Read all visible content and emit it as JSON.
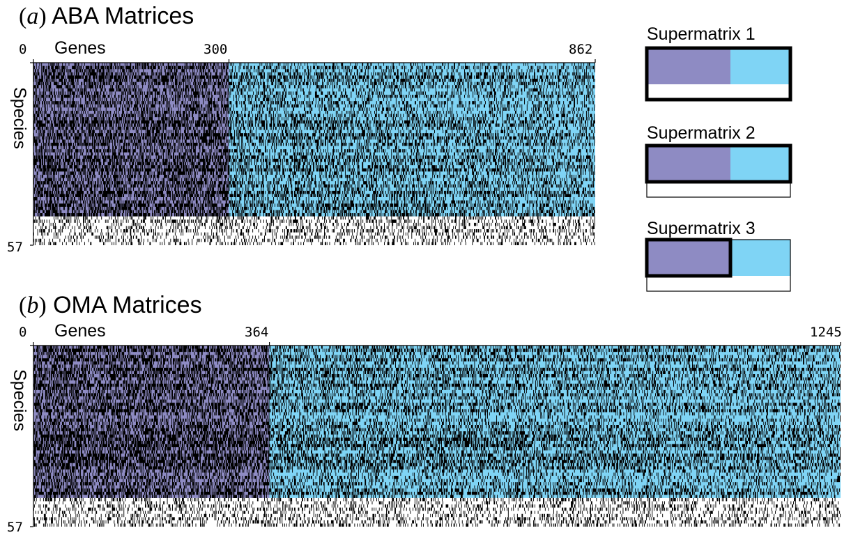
{
  "panels": {
    "a": {
      "letter": "a",
      "title": "ABA Matrices"
    },
    "b": {
      "letter": "b",
      "title": "OMA Matrices"
    }
  },
  "legend": {
    "items": [
      {
        "title": "Supermatrix 1",
        "highlight": "full-top"
      },
      {
        "title": "Supermatrix 2",
        "highlight": "full-top"
      },
      {
        "title": "Supermatrix 3",
        "highlight": "purple-top"
      }
    ]
  },
  "colors": {
    "purple": "#8e8bc3",
    "cyan": "#7fd4f5",
    "missing": "#000000",
    "background": "#ffffff"
  },
  "chart_data": [
    {
      "type": "heatmap",
      "title": "ABA Matrices",
      "xlabel": "Genes",
      "ylabel": "Species",
      "x_ticks": [
        "0",
        "300",
        "862"
      ],
      "y_ticks": [
        "57"
      ],
      "genes_total": 862,
      "species_total": 57,
      "purple_genes": 300,
      "colored_species": 48,
      "xlim": [
        0,
        862
      ],
      "ylim": [
        0,
        57
      ]
    },
    {
      "type": "heatmap",
      "title": "OMA Matrices",
      "xlabel": "Genes",
      "ylabel": "Species",
      "x_ticks": [
        "0",
        "364",
        "1245"
      ],
      "y_ticks": [
        "57"
      ],
      "genes_total": 1245,
      "species_total": 57,
      "purple_genes": 364,
      "colored_species": 48,
      "xlim": [
        0,
        1245
      ],
      "ylim": [
        0,
        57
      ]
    }
  ]
}
